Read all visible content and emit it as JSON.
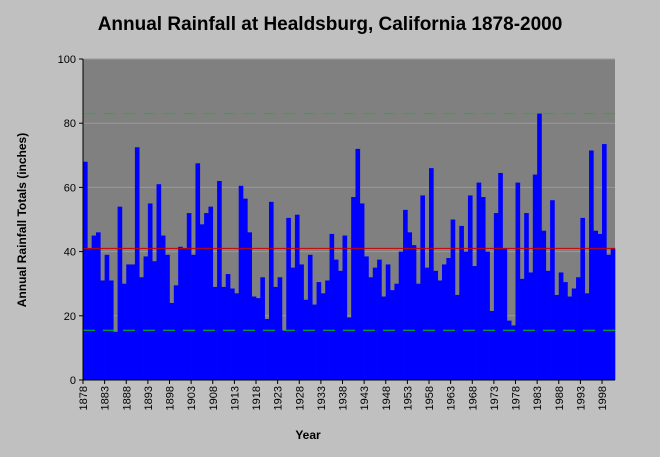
{
  "chart_data": {
    "type": "bar",
    "title": "Annual Rainfall at Healdsburg, California 1878-2000",
    "xlabel": "Year",
    "ylabel": "Annual Rainfall Totals (inches)",
    "ylim": [
      0,
      100
    ],
    "yticks": [
      0,
      20,
      40,
      60,
      80,
      100
    ],
    "grid": true,
    "x_start": 1878,
    "x_end": 2000,
    "xtick_labels": [
      "1878",
      "1883",
      "1888",
      "1893",
      "1898",
      "1903",
      "1908",
      "1913",
      "1918",
      "1923",
      "1928",
      "1933",
      "1938",
      "1943",
      "1948",
      "1953",
      "1958",
      "1963",
      "1968",
      "1973",
      "1978",
      "1983",
      "1988",
      "1993",
      "1998"
    ],
    "bar_color": "#0000ff",
    "values": [
      68,
      41,
      45,
      46,
      31,
      39,
      31,
      15,
      54,
      30,
      36,
      36,
      72.5,
      32,
      38.5,
      55,
      37,
      61,
      45,
      39,
      24,
      29.5,
      41.5,
      41,
      52,
      39,
      67.5,
      48.5,
      52,
      54,
      29,
      62,
      29,
      33,
      28.5,
      27,
      60.5,
      56.5,
      46,
      26,
      25.5,
      32,
      19,
      55.5,
      29,
      32,
      15.5,
      50.5,
      35,
      51.5,
      36,
      25,
      39,
      23.5,
      30.5,
      27,
      31,
      45.5,
      37.5,
      34,
      45,
      19.5,
      57,
      72,
      55,
      38.5,
      32,
      35,
      37.5,
      26,
      36,
      28,
      30,
      40,
      53,
      46,
      42,
      30,
      57.5,
      35,
      66,
      34,
      31,
      36,
      38,
      50,
      26.5,
      48,
      40,
      57.5,
      35.5,
      61.5,
      57,
      40,
      21.5,
      52,
      64.5,
      41,
      18.5,
      17,
      61.5,
      31.5,
      52,
      33.5,
      64,
      83,
      46.5,
      34,
      56,
      26.5,
      33.5,
      30.5,
      26,
      28.5,
      32,
      50.5,
      27,
      71.5,
      46.5,
      45.5,
      73.5,
      39,
      41
    ],
    "reference_lines": [
      {
        "value": 83.0,
        "color": "#00cc00",
        "style": "dashed"
      },
      {
        "value": 41.0,
        "color": "#cc0000",
        "style": "solid"
      },
      {
        "value": 15.5,
        "color": "#00cc00",
        "style": "dashed"
      }
    ]
  }
}
